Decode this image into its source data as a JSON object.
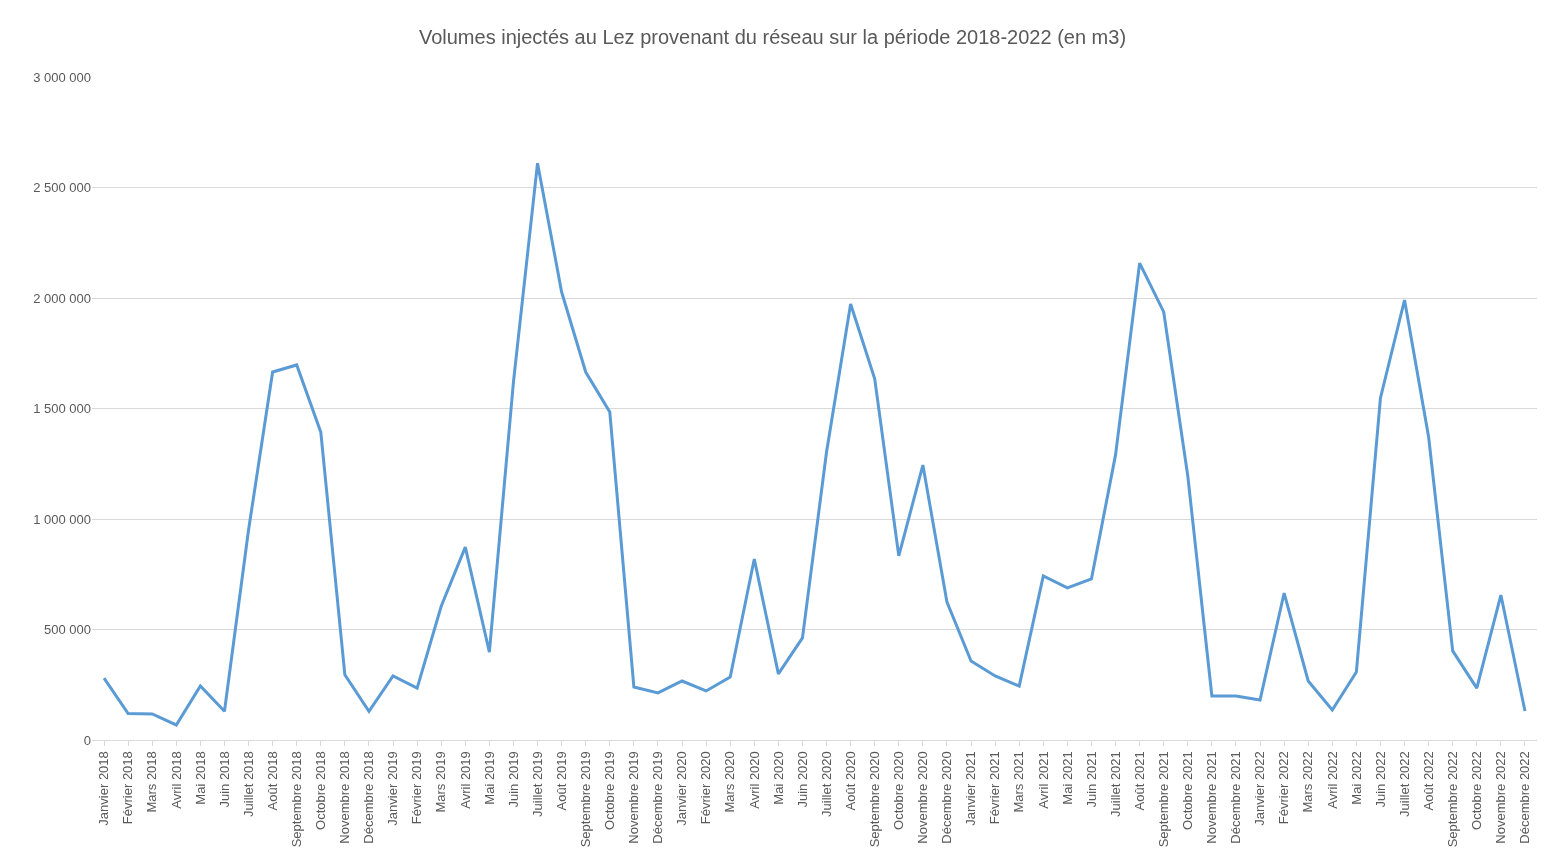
{
  "chart_data": {
    "type": "line",
    "title": "Volumes injectés au Lez provenant du réseau sur la période 2018-2022 (en m3)",
    "categories": [
      "Janvier 2018",
      "Février 2018",
      "Mars 2018",
      "Avril 2018",
      "Mai 2018",
      "Juin 2018",
      "Juillet 2018",
      "Août 2018",
      "Septembre 2018",
      "Octobre 2018",
      "Novembre 2018",
      "Décembre 2018",
      "Janvier 2019",
      "Février 2019",
      "Mars 2019",
      "Avril 2019",
      "Mai 2019",
      "Juin 2019",
      "Juillet 2019",
      "Août 2019",
      "Septembre 2019",
      "Octobre 2019",
      "Novembre 2019",
      "Décembre 2019",
      "Janvier 2020",
      "Février 2020",
      "Mars 2020",
      "Avril 2020",
      "Mai 2020",
      "Juin 2020",
      "Juillet 2020",
      "Août 2020",
      "Septembre 2020",
      "Octobre 2020",
      "Novembre 2020",
      "Décembre 2020",
      "Janvier 2021",
      "Février 2021",
      "Mars 2021",
      "Avril 2021",
      "Mai 2021",
      "Juin 2021",
      "Juillet 2021",
      "Août 2021",
      "Septembre 2021",
      "Octobre 2021",
      "Novembre 2021",
      "Décembre 2021",
      "Janvier 2022",
      "Février 2022",
      "Mars 2022",
      "Avril 2022",
      "Mai 2022",
      "Juin 2022",
      "Juillet 2022",
      "Août 2022",
      "Septembre 2022",
      "Octobre 2022",
      "Novembre 2022",
      "Décembre 2022"
    ],
    "series": [
      {
        "color": "#5b9bd5",
        "values": [
          280000,
          120000,
          118000,
          68000,
          245000,
          130000,
          950000,
          1665000,
          1697000,
          1393000,
          295000,
          130000,
          290000,
          235000,
          605000,
          873000,
          398000,
          1620000,
          2610000,
          2027000,
          1665000,
          1484000,
          240000,
          213000,
          267000,
          222000,
          285000,
          819000,
          299000,
          462000,
          1303000,
          1973000,
          1634000,
          833000,
          1244000,
          624000,
          357000,
          290000,
          244000,
          742000,
          688000,
          729000,
          1290000,
          2158000,
          1937000,
          1195000,
          199000,
          199000,
          181000,
          665000,
          267000,
          136000,
          308000,
          1548000,
          1991000,
          1371000,
          403000,
          235000,
          656000,
          131000
        ]
      }
    ],
    "ylim": [
      0,
      3000000
    ],
    "yticks": [
      {
        "value": 0,
        "label": "0"
      },
      {
        "value": 500000,
        "label": "500 000"
      },
      {
        "value": 1000000,
        "label": "1 000 000"
      },
      {
        "value": 1500000,
        "label": "1 500 000"
      },
      {
        "value": 2000000,
        "label": "2 000 000"
      },
      {
        "value": 2500000,
        "label": "2 500 000"
      },
      {
        "value": 3000000,
        "label": "3 000 000"
      }
    ],
    "grid": "y",
    "marker": "none",
    "line_style": "solid"
  }
}
